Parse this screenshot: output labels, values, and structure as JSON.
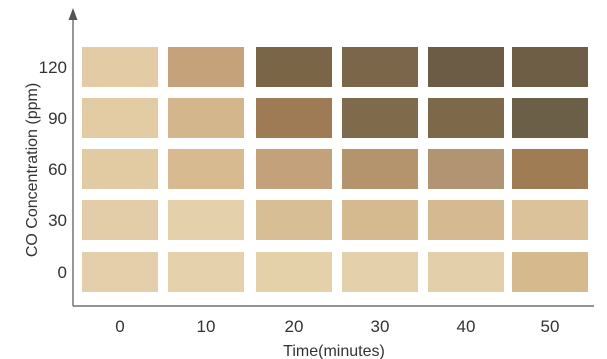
{
  "chart_data": {
    "type": "heatmap",
    "xlabel": "Time(minutes)",
    "ylabel": "CO Concentration (ppm)",
    "x_categories": [
      "0",
      "10",
      "20",
      "30",
      "40",
      "50"
    ],
    "y_categories": [
      "120",
      "90",
      "60",
      "30",
      "0"
    ],
    "cells": [
      [
        "#e3cca5",
        "#c5a27a",
        "#7a6547",
        "#7c6649",
        "#6c5c45",
        "#6e5e46"
      ],
      [
        "#e3cba3",
        "#d3b68c",
        "#9e7b55",
        "#7f6a4c",
        "#7d684a",
        "#6c5f47"
      ],
      [
        "#e2caa3",
        "#d7ba90",
        "#c3a27b",
        "#b4946c",
        "#b19471",
        "#a07c54"
      ],
      [
        "#e3cda8",
        "#e4d0aa",
        "#d8be95",
        "#d5ba90",
        "#d5ba91",
        "#dbc29b"
      ],
      [
        "#e4cfaa",
        "#e5d1ac",
        "#e4d0a9",
        "#e4d0aa",
        "#e3cfa9",
        "#d5ba8e"
      ]
    ],
    "grid": false,
    "legend": "none"
  }
}
